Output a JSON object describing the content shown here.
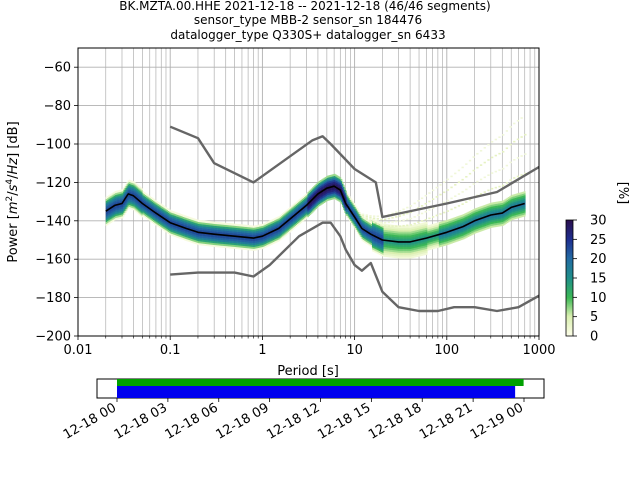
{
  "chart_data": {
    "type": "heatmap",
    "title_lines": [
      "BK.MZTA.00.HHE   2021-12-18 -- 2021-12-18  (46/46 segments)",
      "sensor_type MBB-2 sensor_sn 184476",
      "datalogger_type Q330S+ datalogger_sn 6433"
    ],
    "xlabel": "Period [s]",
    "ylabel": "Power [m²/s⁴/Hz] [dB]",
    "xscale": "log",
    "xlim": [
      0.01,
      1000
    ],
    "ylim": [
      -200,
      -50
    ],
    "xticks": [
      0.01,
      0.1,
      1,
      10,
      100,
      1000
    ],
    "xtick_labels": [
      "0.01",
      "0.1",
      "1",
      "10",
      "100",
      "1000"
    ],
    "yticks": [
      -200,
      -180,
      -160,
      -140,
      -120,
      -100,
      -80,
      -60
    ],
    "ytick_labels": [
      "−200",
      "−180",
      "−160",
      "−140",
      "−120",
      "−100",
      "−80",
      "−60"
    ],
    "grid": true,
    "colorbar": {
      "label": "[%]",
      "min": 0,
      "max": 30,
      "ticks": [
        0,
        5,
        10,
        15,
        20,
        25,
        30
      ],
      "tick_labels": [
        "0",
        "5",
        "10",
        "15",
        "20",
        "25",
        "30"
      ]
    },
    "colors": {
      "mode_line": "#000000",
      "noise_models": "#666666",
      "cmap_low": "#fdfde8",
      "cmap_mid": "#3cb855",
      "cmap_high": "#2b0f4e",
      "coverage_data": "#0000ee",
      "coverage_gaps": "#00a000"
    },
    "series": [
      {
        "type": "line",
        "x": [
          0.02,
          0.025,
          0.03,
          0.035,
          0.04,
          0.05,
          0.07,
          0.1,
          0.15,
          0.2,
          0.3,
          0.5,
          0.8,
          1.0,
          1.5,
          2,
          3,
          4,
          5,
          6,
          7,
          8,
          10,
          12,
          15,
          20,
          30,
          40,
          60,
          100,
          150,
          200,
          300,
          400,
          500,
          700
        ],
        "y": [
          -135,
          -132,
          -131,
          -126,
          -127,
          -131,
          -136,
          -141,
          -144,
          -146,
          -147,
          -148,
          -149,
          -148,
          -144,
          -139,
          -132,
          -126,
          -123,
          -122,
          -124,
          -131,
          -138,
          -144,
          -147,
          -150,
          -151,
          -151,
          -149,
          -146,
          -143,
          -140,
          -137,
          -136,
          -133,
          -131
        ]
      },
      {
        "type": "line",
        "x": [
          0.1,
          0.2,
          0.3,
          0.8,
          3.5,
          4.5,
          5.5,
          10,
          17,
          20,
          100,
          350,
          1000
        ],
        "y": [
          -91,
          -97,
          -110,
          -120,
          -98,
          -96,
          -100,
          -113,
          -120,
          -138,
          -131,
          -125,
          -112
        ]
      },
      {
        "type": "line",
        "x": [
          0.1,
          0.2,
          0.5,
          0.8,
          1.2,
          2.5,
          4.5,
          5.5,
          7,
          8,
          10,
          12,
          15,
          20,
          30,
          50,
          80,
          120,
          200,
          350,
          600,
          1000
        ],
        "y": [
          -168,
          -167,
          -167,
          -169,
          -163,
          -148,
          -141,
          -141,
          -148,
          -155,
          -163,
          -166,
          -162,
          -177,
          -185,
          -187,
          -187,
          -185,
          -185,
          -187,
          -185,
          -179
        ]
      }
    ],
    "coverage": {
      "start": "12-18 00",
      "end": "12-19 00",
      "time_ticks": [
        "12-18 00",
        "12-18 03",
        "12-18 06",
        "12-18 09",
        "12-18 12",
        "12-18 15",
        "12-18 18",
        "12-18 21",
        "12-19 00"
      ],
      "gap_bar_end_hours": 23.8,
      "data_bar_end_hours": 23.3
    }
  }
}
